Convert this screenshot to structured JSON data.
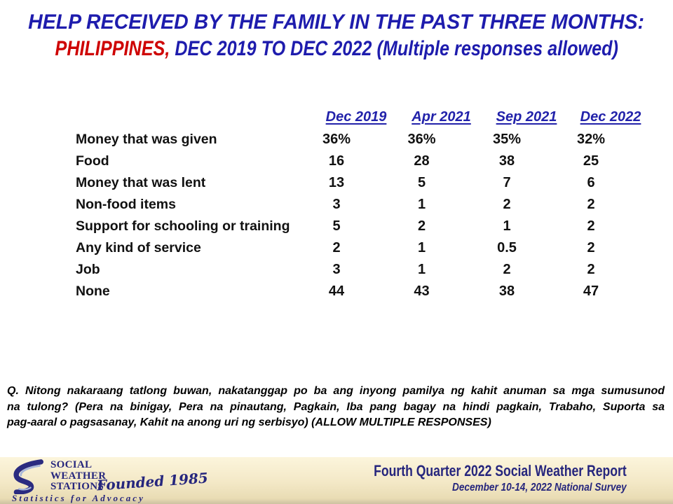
{
  "title": {
    "line1": "HELP RECEIVED BY THE FAMILY IN THE PAST THREE MONTHS:",
    "line2_red": "PHILIPPINES,",
    "line2_blue": "DEC 2019 TO DEC 2022 (Multiple responses allowed)"
  },
  "chart_data": {
    "type": "table",
    "title": "HELP RECEIVED BY THE FAMILY IN THE PAST THREE MONTHS: PHILIPPINES, DEC 2019 TO DEC 2022 (Multiple responses allowed)",
    "columns": [
      "Dec 2019",
      "Apr 2021",
      "Sep 2021",
      "Dec 2022"
    ],
    "rows": [
      {
        "label": "Money that was given",
        "values": [
          "36%",
          "36%",
          "35%",
          "32%"
        ]
      },
      {
        "label": "Food",
        "values": [
          "16",
          "28",
          "38",
          "25"
        ]
      },
      {
        "label": "Money that was lent",
        "values": [
          "13",
          "5",
          "7",
          "6"
        ]
      },
      {
        "label": "Non-food items",
        "values": [
          "3",
          "1",
          "2",
          "2"
        ]
      },
      {
        "label": "Support for schooling or training",
        "values": [
          "5",
          "2",
          "1",
          "2"
        ]
      },
      {
        "label": "Any kind of service",
        "values": [
          "2",
          "1",
          "0.5",
          "2"
        ]
      },
      {
        "label": "Job",
        "values": [
          "3",
          "1",
          "2",
          "2"
        ]
      },
      {
        "label": "None",
        "values": [
          "44",
          "43",
          "38",
          "47"
        ]
      }
    ],
    "units": "percent of respondents",
    "layout": "row labels left, period columns right, values center-aligned"
  },
  "question": {
    "lines": [
      "Q. Nitong nakaraang tatlong buwan, nakatanggap po ba ang inyong pamilya ng kahit anuman sa mga sumusunod",
      "na tulong? (Pera na binigay, Pera na pinautang, Pagkain, Iba pang bagay na hindi pagkain, Trabaho, Suporta sa",
      "pag-aaral o pagsasanay, Kahit na anong uri ng serbisyo) (ALLOW MULTIPLE RESPONSES)"
    ]
  },
  "footer": {
    "logo": {
      "name_line1": "SOCIAL",
      "name_line2": "WEATHER",
      "name_line3": "STATIONS",
      "founded": "Founded 1985",
      "tagline": "Statistics for Advocacy"
    },
    "report_title": "Fourth Quarter 2022 Social Weather Report",
    "report_subtitle": "December 10-14, 2022 National Survey"
  },
  "colors": {
    "title_blue": "#1e1cad",
    "title_red": "#ce0000",
    "header_blue": "#2222aa",
    "logo_navy": "#26267d",
    "footer_cream_top": "#fcf5dc",
    "footer_cream_bottom": "#e9dcb4"
  }
}
